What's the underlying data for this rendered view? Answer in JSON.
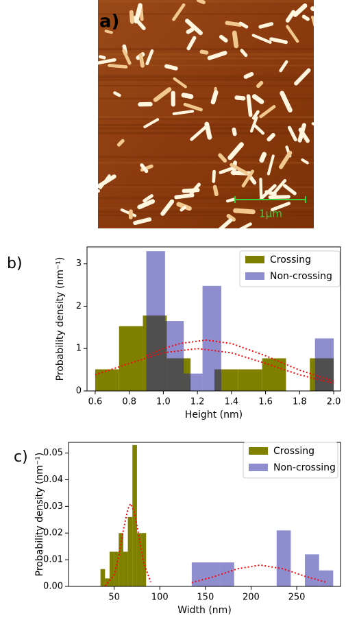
{
  "image_panel": {
    "label": "a)",
    "scale_bar": "1µm"
  },
  "chart_data": [
    {
      "type": "histogram",
      "panel_label": "b)",
      "xlabel": "Height (nm)",
      "ylabel": "Probability density (nm⁻¹)",
      "xlim": [
        0.552,
        2.04
      ],
      "ylim": [
        0,
        3.4
      ],
      "xticks": [
        0.6,
        0.8,
        {
          "value": 1,
          "label": "1.0"
        },
        1.2,
        1.4,
        1.6,
        1.8,
        {
          "value": 2,
          "label": "2.0"
        }
      ],
      "yticks": [
        0,
        1,
        2,
        3
      ],
      "legend": "upper right",
      "alpha": 0.5,
      "series": [
        {
          "name": "Crossing",
          "color": "#808000",
          "bins": [
            0.6,
            0.74,
            0.88,
            1.02,
            1.16,
            1.3,
            1.44,
            1.58,
            1.72,
            1.86,
            2.0
          ],
          "values": [
            0.51,
            1.53,
            1.78,
            0.77,
            0,
            0.51,
            0.51,
            0.77,
            0,
            0.77
          ]
        },
        {
          "name": "Non-crossing",
          "color": "#1d1d9d",
          "bins": [
            0.9,
            1.01,
            1.12,
            1.23,
            1.34,
            1.45,
            1.56,
            1.67,
            1.78,
            1.89,
            2.0
          ],
          "values": [
            3.3,
            1.65,
            0.41,
            2.48,
            0,
            0,
            0,
            0,
            0,
            1.24
          ]
        }
      ],
      "fit_curves": [
        {
          "color": "#ff0000",
          "x": [
            0.6,
            0.8,
            1.0,
            1.2,
            1.4,
            1.6,
            1.8,
            2.0
          ],
          "values": [
            0.38,
            0.65,
            0.9,
            1.0,
            0.9,
            0.65,
            0.38,
            0.18
          ]
        },
        {
          "color": "#ff0000",
          "x": [
            0.9,
            1.0,
            1.1,
            1.25,
            1.4,
            1.6,
            1.8,
            2.0
          ],
          "values": [
            0.83,
            1.0,
            1.12,
            1.2,
            1.12,
            0.83,
            0.49,
            0.23
          ]
        }
      ]
    },
    {
      "type": "histogram",
      "panel_label": "c)",
      "xlabel": "Width (nm)",
      "ylabel": "Probability density (nm⁻¹)",
      "xlim": [
        0,
        298
      ],
      "ylim": [
        0,
        0.054
      ],
      "xticks": [
        50,
        100,
        150,
        200,
        250
      ],
      "yticks": [
        {
          "value": 0,
          "label": "0.00"
        },
        {
          "value": 0.01,
          "label": "0.01"
        },
        {
          "value": 0.02,
          "label": "0.02"
        },
        {
          "value": 0.03,
          "label": "0.03"
        },
        {
          "value": 0.04,
          "label": "0.04"
        },
        0.05
      ],
      "legend": "upper right",
      "alpha": 0.5,
      "series": [
        {
          "name": "Crossing",
          "color": "#808000",
          "bins": [
            35,
            40,
            45,
            50,
            55,
            60,
            65,
            70,
            75,
            80,
            85,
            90
          ],
          "values": [
            0.0065,
            0.003,
            0.013,
            0.013,
            0.02,
            0.013,
            0.026,
            0.053,
            0.02,
            0.02,
            0
          ]
        },
        {
          "name": "Non-crossing",
          "color": "#1d1d9d",
          "bins": [
            135,
            150.5,
            166,
            181.5,
            197,
            212.5,
            228,
            243.5,
            259,
            274.5,
            290
          ],
          "values": [
            0.009,
            0.009,
            0.009,
            0,
            0,
            0,
            0.021,
            0,
            0.012,
            0.006
          ]
        }
      ],
      "fit_curves": [
        {
          "color": "#ff0000",
          "x": [
            40,
            50,
            55,
            60,
            65,
            68,
            72,
            77,
            82,
            90
          ],
          "values": [
            0.0002,
            0.0042,
            0.011,
            0.021,
            0.029,
            0.031,
            0.028,
            0.019,
            0.0093,
            0.0016
          ]
        },
        {
          "color": "#ff0000",
          "x": [
            135,
            160,
            185,
            210,
            235,
            260,
            283
          ],
          "values": [
            0.0014,
            0.0037,
            0.0066,
            0.008,
            0.0066,
            0.0037,
            0.0015
          ]
        }
      ]
    }
  ]
}
